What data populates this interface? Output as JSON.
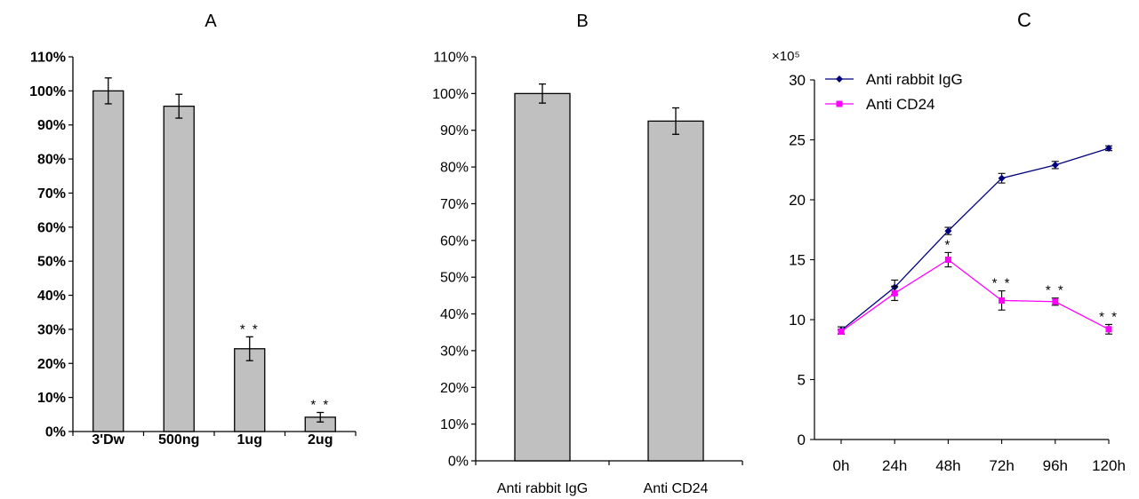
{
  "chart_data": [
    {
      "type": "bar",
      "title": "A",
      "xlabel": "",
      "ylabel": "",
      "ylim": [
        0,
        110
      ],
      "y_unit": "%",
      "y_ticks": [
        "0%",
        "10%",
        "20%",
        "30%",
        "40%",
        "50%",
        "60%",
        "70%",
        "80%",
        "90%",
        "100%",
        "110%"
      ],
      "categories": [
        "3'Dw",
        "500ng",
        "1ug",
        "2ug"
      ],
      "values": [
        100,
        95.5,
        24.3,
        4.2
      ],
      "error": [
        3.8,
        3.5,
        3.5,
        1.4
      ],
      "annotations": [
        "",
        "",
        "* *",
        "* *"
      ],
      "bar_color": "#c0c0c0",
      "grid": false
    },
    {
      "type": "bar",
      "title": "B",
      "xlabel": "",
      "ylabel": "",
      "ylim": [
        0,
        110
      ],
      "y_unit": "%",
      "y_ticks": [
        "0%",
        "10%",
        "20%",
        "30%",
        "40%",
        "50%",
        "60%",
        "70%",
        "80%",
        "90%",
        "100%",
        "110%"
      ],
      "categories": [
        "Anti rabbit IgG",
        "Anti CD24"
      ],
      "values": [
        100,
        92.5
      ],
      "error": [
        2.6,
        3.6
      ],
      "annotations": [
        "",
        ""
      ],
      "bar_color": "#c0c0c0",
      "grid": false
    },
    {
      "type": "line",
      "title": "C",
      "xlabel": "",
      "ylabel": "",
      "y_multiplier": "×10⁵",
      "ylim": [
        0,
        30
      ],
      "y_ticks": [
        "0",
        "5",
        "10",
        "15",
        "20",
        "25",
        "30"
      ],
      "categories": [
        "0h",
        "24h",
        "48h",
        "72h",
        "96h",
        "120h"
      ],
      "legend_position": "top-left",
      "grid": false,
      "series": [
        {
          "name": "Anti rabbit IgG",
          "color": "#00007f",
          "marker": "diamond",
          "values": [
            9.1,
            12.7,
            17.4,
            21.8,
            22.9,
            24.3
          ],
          "error": [
            0.3,
            0.6,
            0.3,
            0.4,
            0.3,
            0.2
          ],
          "annotations": [
            "",
            "",
            "",
            "",
            "",
            ""
          ]
        },
        {
          "name": "Anti CD24",
          "color": "#ff00ff",
          "marker": "square",
          "values": [
            9.0,
            12.2,
            15.0,
            11.6,
            11.5,
            9.2
          ],
          "error": [
            0.2,
            0.6,
            0.6,
            0.8,
            0.3,
            0.4
          ],
          "annotations": [
            "",
            "",
            "*",
            "* *",
            "* *",
            "* *"
          ]
        }
      ]
    }
  ]
}
